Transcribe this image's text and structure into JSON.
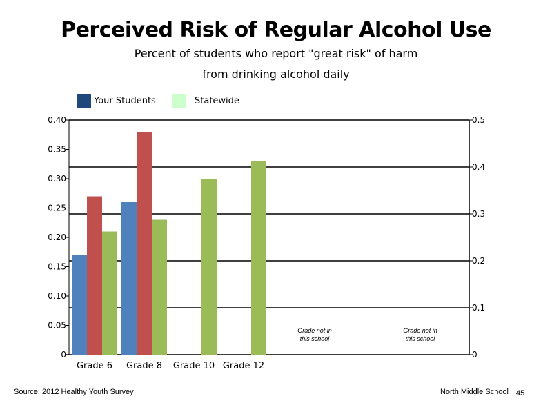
{
  "chart_data": {
    "type": "bar",
    "title": "Perceived Risk of Regular Alcohol Use",
    "subtitle_line1": "Percent of students who report \"great risk\" of harm",
    "subtitle_line2": "from drinking alcohol daily",
    "categories": [
      "Grade 6",
      "Grade 8",
      "Grade 10",
      "Grade 12"
    ],
    "series": [
      {
        "name": "Your Students",
        "color": "#4f81bd",
        "values": [
          0.17,
          0.26,
          null,
          null
        ]
      },
      {
        "name": "",
        "color": "#c0504d",
        "values": [
          0.27,
          0.38,
          null,
          null
        ]
      },
      {
        "name": "Statewide",
        "color": "#9bbb59",
        "values": [
          0.21,
          0.23,
          0.3,
          0.33
        ]
      }
    ],
    "legend": [
      {
        "label": "Your Students",
        "color": "#1f497d"
      },
      {
        "label": "Statewide",
        "color": "#ccffcc"
      }
    ],
    "y_left": {
      "ylim": [
        0,
        0.4
      ],
      "ticks": [
        "0",
        "0.05",
        "0.10",
        "0.15",
        "0.20",
        "0.25",
        "0.30",
        "0.35",
        "0.40"
      ]
    },
    "y_right": {
      "ylim": [
        0,
        0.5
      ],
      "ticks": [
        "0",
        "0.1",
        "0.2",
        "0.3",
        "0.4",
        "0.5"
      ]
    },
    "annotations": [
      {
        "line1": "Grade not in",
        "line2": "this school"
      },
      {
        "line1": "Grade not in",
        "line2": "this school"
      }
    ],
    "grid": true,
    "legend_position": "top-left"
  },
  "footer": {
    "source": "Source: 2012 Healthy Youth Survey",
    "school": "North Middle School",
    "page": "45"
  }
}
